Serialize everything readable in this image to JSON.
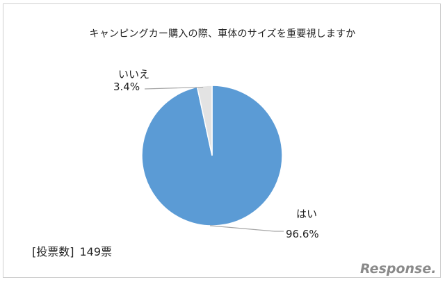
{
  "chart_data": {
    "type": "pie",
    "title": "キャンピングカー購入の際、車体のサイズを重要視しますか",
    "slices": [
      {
        "name": "はい",
        "value": 96.6,
        "label": "96.6%",
        "color": "#5b9bd5"
      },
      {
        "name": "いいえ",
        "value": 3.4,
        "label": "3.4%",
        "color": "#e3e3e3"
      }
    ]
  },
  "footnote": {
    "label": "[投票数]",
    "value": "149票"
  },
  "watermark": {
    "text": "Response."
  },
  "colors": {
    "slice_border": "#ffffff",
    "leader_line": "#a6a6a6",
    "frame_border": "#cfcfcf"
  }
}
